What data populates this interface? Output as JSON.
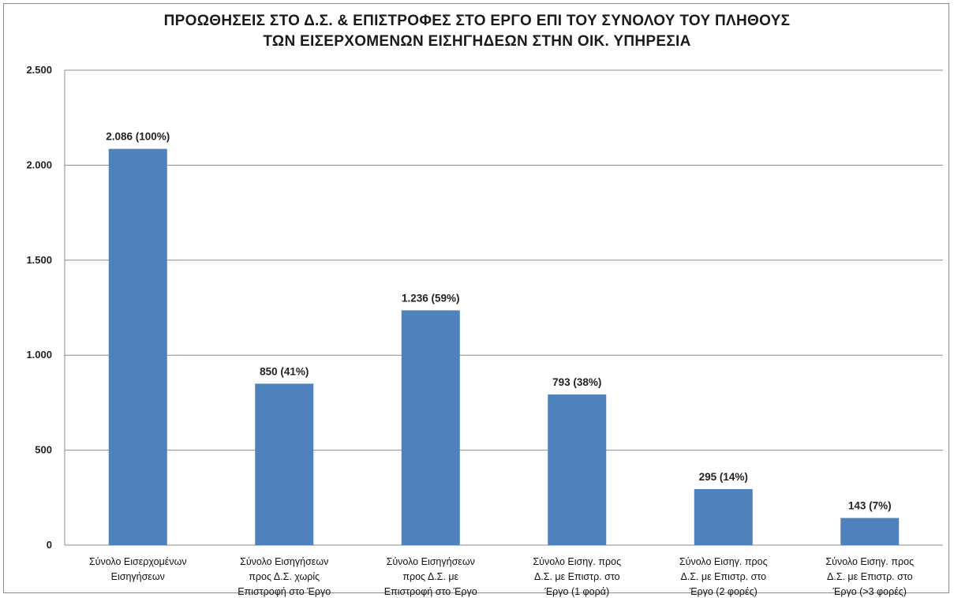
{
  "chart_data": {
    "type": "bar",
    "title_lines": [
      "ΠΡΟΩΘΗΣΕΙΣ ΣΤΟ Δ.Σ. & ΕΠΙΣΤΡΟΦΕΣ ΣΤΟ ΕΡΓΟ ΕΠΙ ΤΟΥ ΣΥΝΟΛΟΥ ΤΟΥ ΠΛΗΘΟΥΣ",
      "ΤΩΝ ΕΙΣΕΡΧΟΜΕΝΩΝ ΕΙΣΗΓΗΔΕΩΝ ΣΤΗΝ ΟΙΚ. ΥΠΗΡΕΣΙΑ"
    ],
    "categories": [
      [
        "Σύνολο Εισερχομένων",
        "Εισηγήσεων"
      ],
      [
        "Σύνολο Εισηγήσεων",
        "προς Δ.Σ. χωρίς",
        "Επιστροφή στο Έργο"
      ],
      [
        "Σύνολο Εισηγήσεων",
        "προς Δ.Σ. με",
        "Επιστροφή στο Έργο"
      ],
      [
        "Σύνολο Εισηγ. προς",
        "Δ.Σ. με Επιστρ. στο",
        "Έργο (1 φορά)"
      ],
      [
        "Σύνολο Εισηγ. προς",
        "Δ.Σ. με Επιστρ. στο",
        "Έργο (2 φορές)"
      ],
      [
        "Σύνολο Εισηγ. προς",
        "Δ.Σ. με Επιστρ. στο",
        "Έργο (>3 φορές)"
      ]
    ],
    "values": [
      2086,
      850,
      1236,
      793,
      295,
      143
    ],
    "data_labels": [
      "2.086 (100%)",
      "850 (41%)",
      "1.236 (59%)",
      "793 (38%)",
      "295 (14%)",
      "143 (7%)"
    ],
    "ylim": [
      0,
      2500
    ],
    "yticks": [
      0,
      500,
      1000,
      1500,
      2000,
      2500
    ],
    "ytick_labels": [
      "0",
      "500",
      "1.000",
      "1.500",
      "2.000",
      "2.500"
    ],
    "grid": true,
    "bar_color": "#4f81bd",
    "grid_color": "#8c8c8c"
  }
}
